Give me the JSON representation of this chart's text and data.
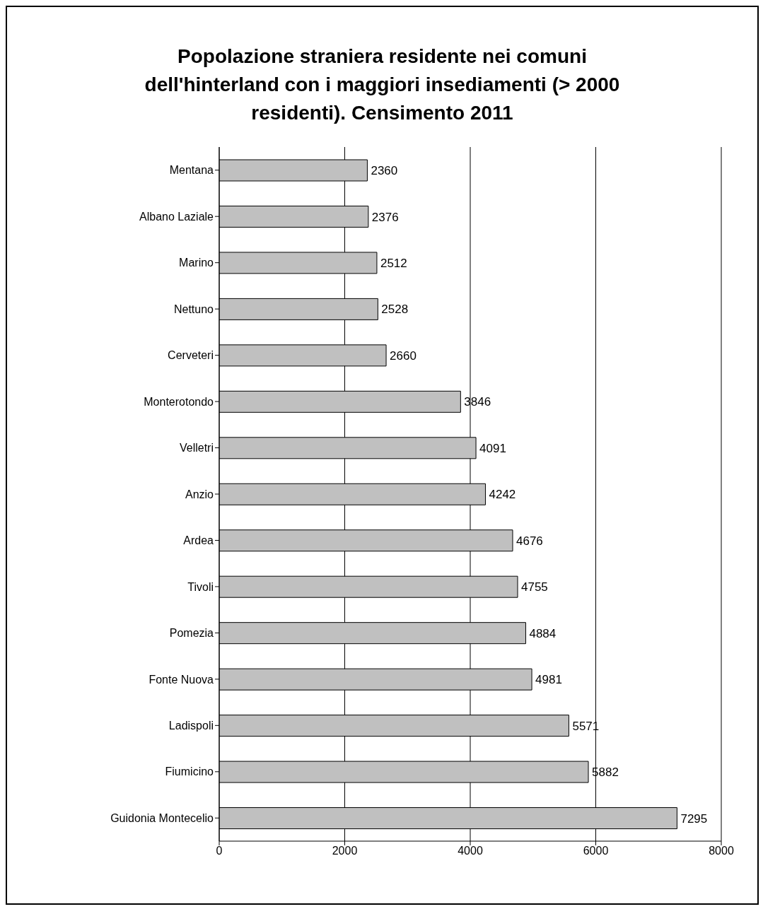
{
  "chart_data": {
    "type": "bar",
    "orientation": "horizontal",
    "title": "Popolazione straniera residente nei comuni dell'hinterland con i maggiori insediamenti (> 2000 residenti). Censimento 2011",
    "categories": [
      "Mentana",
      "Albano Laziale",
      "Marino",
      "Nettuno",
      "Cerveteri",
      "Monterotondo",
      "Velletri",
      "Anzio",
      "Ardea",
      "Tivoli",
      "Pomezia",
      "Fonte Nuova",
      "Ladispoli",
      "Fiumicino",
      "Guidonia Montecelio"
    ],
    "values": [
      2360,
      2376,
      2512,
      2528,
      2660,
      3846,
      4091,
      4242,
      4676,
      4755,
      4884,
      4981,
      5571,
      5882,
      7295
    ],
    "color": "#c0c0c0",
    "xlim": [
      0,
      8000
    ],
    "xticks": [
      0,
      2000,
      4000,
      6000,
      8000
    ],
    "grid": "x",
    "data_labels": true
  }
}
